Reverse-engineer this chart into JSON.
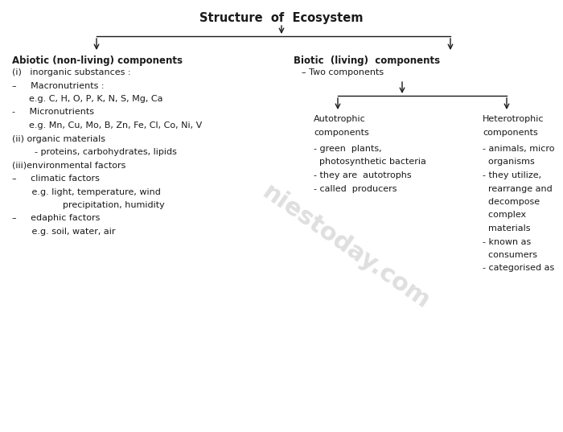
{
  "title": "Structure  of  Ecosystem",
  "bg_color": "#ffffff",
  "text_color": "#1a1a1a",
  "title_fontsize": 10.5,
  "body_fontsize": 8.0,
  "header_fontsize": 8.5,
  "watermark": "niestoday.com",
  "sections": {
    "abiotic_header": "Abiotic (non-living) components",
    "biotic_header": "Biotic  (living)  components",
    "abiotic_lines": [
      [
        "(i)   inorganic substances :",
        false
      ],
      [
        "–     Macronutrients :",
        false
      ],
      [
        "      e.g. C, H, O, P, K, N, S, Mg, Ca",
        false
      ],
      [
        "-     Micronutrients",
        false
      ],
      [
        "      e.g. Mn, Cu, Mo, B, Zn, Fe, Cl, Co, Ni, V",
        false
      ],
      [
        "(ii) organic materials",
        false
      ],
      [
        "        - proteins, carbohydrates, lipids",
        false
      ],
      [
        "(iii)environmental factors",
        false
      ],
      [
        "–     climatic factors",
        false
      ],
      [
        "       e.g. light, temperature, wind",
        false
      ],
      [
        "                  precipitation, humidity",
        false
      ],
      [
        "–     edaphic factors",
        false
      ],
      [
        "       e.g. soil, water, air",
        false
      ]
    ],
    "biotic_top": "– Two components",
    "autotrophic_header": "Autotrophic",
    "autotrophic_header2": "components",
    "autotrophic_lines": [
      "- green  plants,",
      "  photosynthetic bacteria",
      "- they are  autotrophs",
      "- called  producers"
    ],
    "heterotrophic_header": "Heterotrophic",
    "heterotrophic_header2": "components",
    "heterotrophic_lines": [
      "- animals, micro",
      "  organisms",
      "- they utilize,",
      "  rearrange and",
      "  decompose",
      "  complex",
      "  materials",
      "- known as",
      "  consumers",
      "- categorised as"
    ]
  }
}
